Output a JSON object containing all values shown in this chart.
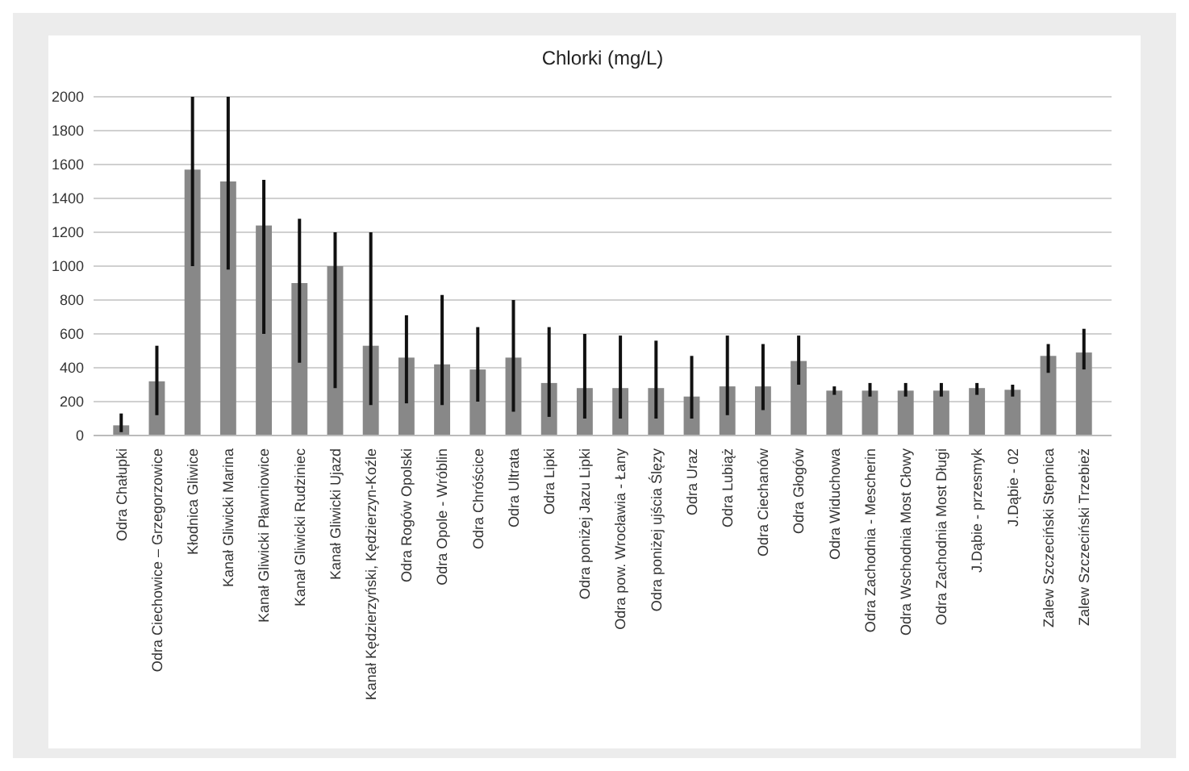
{
  "chart_data": {
    "type": "bar",
    "title": "Chlorki (mg/L)",
    "categories": [
      "Odra Chałupki",
      "Odra Ciechowice – Grzegorzowice",
      "Kłodnica Gliwice",
      "Kanał Gliwicki Marina",
      "Kanał Gliwicki Pławniowice",
      "Kanał Gliwicki Rudziniec",
      "Kanał Gliwicki Ujazd",
      "Kanał Kędzierzyński, Kędzierzyn-Koźle",
      "Odra Rogów Opolski",
      "Odra Opole - Wróblin",
      "Odra Chróścice",
      "Odra Ultrata",
      "Odra Lipki",
      "Odra poniżej Jazu Lipki",
      "Odra pow. Wrocławia - Łany",
      "Odra poniżej ujścia Ślęzy",
      "Odra Uraz",
      "Odra Lubiąż",
      "Odra Ciechanów",
      "Odra Głogów",
      "Odra Widuchowa",
      "Odra Zachodnia - Mescherin",
      "Odra Wschodnia Most Cłowy",
      "Odra Zachodnia Most Długi",
      "J.Dąbie - przesmyk",
      "J.Dąbie - 02",
      "Zalew Szczeciński Stepnica",
      "Zalew Szczeciński Trzebież"
    ],
    "values": [
      60,
      320,
      1570,
      1500,
      1240,
      900,
      1000,
      530,
      460,
      420,
      390,
      460,
      310,
      280,
      280,
      280,
      230,
      290,
      290,
      440,
      265,
      265,
      265,
      265,
      280,
      270,
      470,
      490
    ],
    "errors": [
      [
        20,
        130
      ],
      [
        120,
        530
      ],
      [
        1000,
        2000
      ],
      [
        980,
        2000
      ],
      [
        600,
        1510
      ],
      [
        430,
        1280
      ],
      [
        280,
        1200
      ],
      [
        180,
        1200
      ],
      [
        190,
        710
      ],
      [
        180,
        830
      ],
      [
        200,
        640
      ],
      [
        140,
        800
      ],
      [
        110,
        640
      ],
      [
        100,
        600
      ],
      [
        100,
        590
      ],
      [
        100,
        560
      ],
      [
        100,
        470
      ],
      [
        120,
        590
      ],
      [
        150,
        540
      ],
      [
        300,
        590
      ],
      [
        240,
        290
      ],
      [
        230,
        310
      ],
      [
        230,
        310
      ],
      [
        230,
        310
      ],
      [
        240,
        310
      ],
      [
        230,
        300
      ],
      [
        370,
        540
      ],
      [
        390,
        630
      ]
    ],
    "color": "#888888",
    "ylim": [
      0,
      2000
    ],
    "yticks": [
      0,
      200,
      400,
      600,
      800,
      1000,
      1200,
      1400,
      1600,
      1800,
      2000
    ],
    "grid": "y"
  }
}
